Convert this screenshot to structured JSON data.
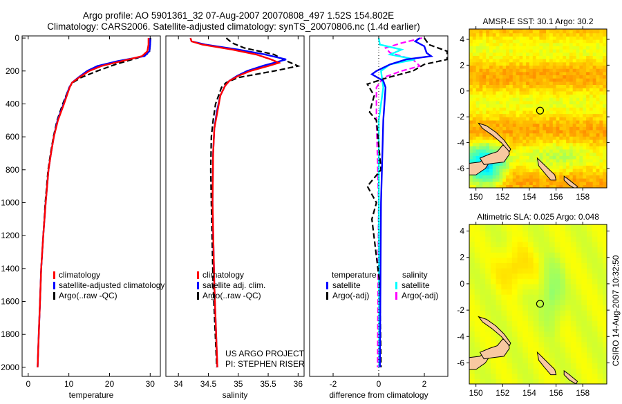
{
  "title_line1": "Argo profile: AO 5901361_32 07-Aug-2007 20070808_497 1.52S 154.802E",
  "title_line2": "Climatology: CARS2006. Satellite-adjusted climatology: synTS_20070806.nc (1.4d earlier)",
  "side_stamp": "CSIRO 14-Aug-2007 10:32:50",
  "project_line1": "US ARGO PROJECT",
  "project_line2": "PI: STEPHEN RISER",
  "colors": {
    "climatology": "#ff0000",
    "satellite": "#0000ff",
    "argo": "#000000",
    "sal_satellite": "#00ffff",
    "sal_argo": "#ff00ff",
    "land": "#f8c8a0"
  },
  "chart_data": [
    {
      "type": "line",
      "id": "temperature",
      "xlabel": "temperature",
      "ylabel": "",
      "xlim": [
        -1.5,
        32.5
      ],
      "ylim": [
        2055,
        -13
      ],
      "xticks": [
        0,
        10,
        20,
        30
      ],
      "yticks": [
        0,
        200,
        400,
        600,
        800,
        1000,
        1200,
        1400,
        1600,
        1800,
        2000
      ],
      "legend": [
        "climatology",
        "satellite-adjusted climatology",
        "Argo(..raw -QC)"
      ],
      "series": [
        {
          "name": "climatology",
          "color": "#ff0000",
          "dash": false,
          "points": [
            [
              0,
              29.6
            ],
            [
              40,
              29.6
            ],
            [
              80,
              29.3
            ],
            [
              110,
              28
            ],
            [
              140,
              23
            ],
            [
              170,
              18
            ],
            [
              200,
              15
            ],
            [
              240,
              12.5
            ],
            [
              270,
              10.8
            ],
            [
              300,
              10.2
            ],
            [
              400,
              8.8
            ],
            [
              500,
              7.3
            ],
            [
              600,
              6.3
            ],
            [
              700,
              5.6
            ],
            [
              800,
              5
            ],
            [
              1000,
              4.3
            ],
            [
              1200,
              3.7
            ],
            [
              1400,
              3.2
            ],
            [
              1600,
              2.9
            ],
            [
              1800,
              2.6
            ],
            [
              2000,
              2.3
            ]
          ]
        },
        {
          "name": "satellite-adjusted climatology",
          "color": "#0000ff",
          "dash": false,
          "points": [
            [
              0,
              30
            ],
            [
              40,
              30
            ],
            [
              80,
              29.8
            ],
            [
              110,
              28.6
            ],
            [
              140,
              22
            ],
            [
              170,
              17
            ],
            [
              200,
              14.5
            ],
            [
              240,
              12.3
            ],
            [
              270,
              10.8
            ],
            [
              300,
              10.1
            ],
            [
              400,
              8.7
            ],
            [
              500,
              7.2
            ],
            [
              600,
              6.3
            ],
            [
              700,
              5.6
            ],
            [
              800,
              5
            ],
            [
              1000,
              4.3
            ],
            [
              1200,
              3.7
            ],
            [
              1400,
              3.2
            ],
            [
              1600,
              2.9
            ],
            [
              1800,
              2.6
            ],
            [
              2000,
              2.3
            ]
          ]
        },
        {
          "name": "Argo(..raw -QC)",
          "color": "#000000",
          "dash": true,
          "points": [
            [
              0,
              30.1
            ],
            [
              40,
              30
            ],
            [
              90,
              29.8
            ],
            [
              120,
              27
            ],
            [
              160,
              21.5
            ],
            [
              200,
              17
            ],
            [
              240,
              13
            ],
            [
              270,
              11
            ],
            [
              300,
              10.1
            ],
            [
              400,
              8.5
            ],
            [
              500,
              7.1
            ],
            [
              600,
              6.2
            ],
            [
              700,
              5.5
            ],
            [
              800,
              4.9
            ],
            [
              1000,
              4.2
            ],
            [
              1200,
              3.7
            ],
            [
              1400,
              3.2
            ],
            [
              1600,
              2.9
            ],
            [
              1800,
              2.6
            ],
            [
              2000,
              2.3
            ]
          ]
        }
      ]
    },
    {
      "type": "line",
      "id": "salinity",
      "xlabel": "salinity",
      "xlim": [
        33.79,
        36.1
      ],
      "ylim": [
        2055,
        -13
      ],
      "xticks": [
        34,
        34.5,
        35,
        35.5,
        36
      ],
      "yticks": [],
      "legend": [
        "climatology",
        "satellite adj. clim.",
        "Argo(..raw -QC)"
      ],
      "series": [
        {
          "name": "climatology",
          "color": "#ff0000",
          "dash": false,
          "points": [
            [
              0,
              34.2
            ],
            [
              20,
              34.22
            ],
            [
              40,
              34.4
            ],
            [
              70,
              34.9
            ],
            [
              100,
              35.3
            ],
            [
              130,
              35.55
            ],
            [
              150,
              35.68
            ],
            [
              170,
              35.5
            ],
            [
              200,
              35.2
            ],
            [
              230,
              35.0
            ],
            [
              260,
              34.85
            ],
            [
              290,
              34.78
            ],
            [
              350,
              34.7
            ],
            [
              450,
              34.65
            ],
            [
              550,
              34.6
            ],
            [
              700,
              34.58
            ],
            [
              1000,
              34.57
            ],
            [
              1500,
              34.6
            ],
            [
              2000,
              34.65
            ]
          ]
        },
        {
          "name": "satellite adj. clim.",
          "color": "#0000ff",
          "dash": false,
          "points": [
            [
              0,
              34.2
            ],
            [
              20,
              34.22
            ],
            [
              40,
              34.45
            ],
            [
              70,
              35.0
            ],
            [
              100,
              35.45
            ],
            [
              130,
              35.8
            ],
            [
              150,
              35.6
            ],
            [
              170,
              35.4
            ],
            [
              200,
              35.15
            ],
            [
              230,
              34.98
            ],
            [
              260,
              34.85
            ],
            [
              290,
              34.78
            ],
            [
              350,
              34.7
            ],
            [
              450,
              34.64
            ],
            [
              550,
              34.6
            ],
            [
              700,
              34.58
            ],
            [
              1000,
              34.57
            ],
            [
              1500,
              34.6
            ],
            [
              2000,
              34.65
            ]
          ]
        },
        {
          "name": "Argo(..raw -QC)",
          "color": "#000000",
          "dash": true,
          "points": [
            [
              0,
              34.8
            ],
            [
              30,
              34.9
            ],
            [
              60,
              35.1
            ],
            [
              100,
              35.6
            ],
            [
              130,
              35.75
            ],
            [
              170,
              36.0
            ],
            [
              200,
              35.6
            ],
            [
              240,
              35.0
            ],
            [
              270,
              34.8
            ],
            [
              300,
              34.72
            ],
            [
              400,
              34.62
            ],
            [
              500,
              34.58
            ],
            [
              600,
              34.55
            ],
            [
              800,
              34.54
            ],
            [
              1000,
              34.55
            ],
            [
              1500,
              34.58
            ],
            [
              2000,
              34.64
            ]
          ]
        }
      ]
    },
    {
      "type": "line",
      "id": "difference",
      "xlabel": "difference from climatology",
      "xlim": [
        -3.03,
        3.03
      ],
      "ylim": [
        2055,
        -13
      ],
      "xticks": [
        -2,
        0,
        2
      ],
      "yticks": [],
      "legend_left_title": "temperature",
      "legend_right_title": "salinity",
      "legend_left": [
        "satellite",
        "Argo(-adj)"
      ],
      "legend_right": [
        "satellite",
        "Argo(-adj)"
      ],
      "series": [
        {
          "name": "temperature satellite",
          "color": "#0000ff",
          "dash": false,
          "points": [
            [
              0,
              1.8
            ],
            [
              20,
              1.6
            ],
            [
              50,
              2.0
            ],
            [
              90,
              2.1
            ],
            [
              110,
              2.3
            ],
            [
              130,
              1.2
            ],
            [
              160,
              0.5
            ],
            [
              200,
              -0.1
            ],
            [
              220,
              -0.3
            ],
            [
              260,
              0.2
            ],
            [
              300,
              0.3
            ],
            [
              500,
              0.2
            ],
            [
              1000,
              0.1
            ],
            [
              2000,
              0.05
            ]
          ]
        },
        {
          "name": "temperature Argo(-adj)",
          "color": "#000000",
          "dash": true,
          "points": [
            [
              0,
              2.0
            ],
            [
              40,
              2.2
            ],
            [
              80,
              3.0
            ],
            [
              130,
              3.0
            ],
            [
              160,
              2.0
            ],
            [
              200,
              1.5
            ],
            [
              240,
              0.4
            ],
            [
              280,
              -0.5
            ],
            [
              350,
              -0.2
            ],
            [
              450,
              -0.4
            ],
            [
              500,
              -0.1
            ],
            [
              800,
              0.1
            ],
            [
              900,
              -0.5
            ],
            [
              1000,
              -0.1
            ],
            [
              1100,
              -0.3
            ],
            [
              1500,
              0.05
            ],
            [
              2000,
              0.1
            ]
          ]
        },
        {
          "name": "salinity satellite",
          "color": "#00ffff",
          "dash": false,
          "points": [
            [
              0,
              0
            ],
            [
              40,
              0.05
            ],
            [
              70,
              1.0
            ],
            [
              100,
              0.5
            ],
            [
              130,
              1.6
            ],
            [
              160,
              0.5
            ],
            [
              200,
              0.1
            ],
            [
              300,
              0.2
            ],
            [
              500,
              0
            ],
            [
              2000,
              0.02
            ]
          ]
        },
        {
          "name": "salinity Argo(-adj)",
          "color": "#ff00ff",
          "dash": true,
          "points": [
            [
              0,
              1.9
            ],
            [
              30,
              1.0
            ],
            [
              60,
              0.3
            ],
            [
              90,
              0.5
            ],
            [
              130,
              1.5
            ],
            [
              170,
              1.8
            ],
            [
              200,
              1.0
            ],
            [
              240,
              0.2
            ],
            [
              300,
              -0.1
            ],
            [
              500,
              -0.1
            ],
            [
              1000,
              0
            ],
            [
              2000,
              -0.05
            ]
          ]
        }
      ]
    },
    {
      "type": "heatmap",
      "id": "sst_map",
      "title": "AMSR-E SST: 30.1 Argo: 30.2",
      "xlim": [
        149.5,
        159.8
      ],
      "ylim": [
        -7.5,
        4.8
      ],
      "xticks": [
        150,
        152,
        154,
        156,
        158
      ],
      "yticks": [
        4,
        2,
        0,
        -2,
        -4,
        -6
      ],
      "field": "sst",
      "marker": [
        154.802,
        -1.52
      ]
    },
    {
      "type": "heatmap",
      "id": "sla_map",
      "title": "Altimetric SLA: 0.025 Argo: 0.048",
      "xlim": [
        149.5,
        159.8
      ],
      "ylim": [
        -7.6,
        4.5
      ],
      "xticks": [
        150,
        152,
        154,
        156,
        158
      ],
      "yticks": [
        4,
        2,
        0,
        -2,
        -4,
        -6
      ],
      "field": "sla",
      "marker": [
        154.802,
        -1.52
      ]
    }
  ],
  "land": [
    [
      [
        149.5,
        -5.6
      ],
      [
        150.3,
        -5.5
      ],
      [
        150.8,
        -5.1
      ],
      [
        151.1,
        -5.4
      ],
      [
        150.7,
        -6.0
      ],
      [
        150.0,
        -6.5
      ],
      [
        149.5,
        -6.5
      ]
    ],
    [
      [
        150.3,
        -5.2
      ],
      [
        151.0,
        -4.9
      ],
      [
        151.6,
        -4.7
      ],
      [
        152.0,
        -4.2
      ],
      [
        152.4,
        -4.3
      ],
      [
        152.5,
        -4.9
      ],
      [
        152.1,
        -5.5
      ],
      [
        151.3,
        -5.6
      ],
      [
        150.6,
        -5.7
      ]
    ],
    [
      [
        150.2,
        -2.5
      ],
      [
        150.8,
        -2.7
      ],
      [
        151.5,
        -3.2
      ],
      [
        152.1,
        -3.8
      ],
      [
        152.6,
        -4.5
      ],
      [
        152.5,
        -4.7
      ],
      [
        151.9,
        -4.0
      ],
      [
        151.2,
        -3.4
      ],
      [
        150.5,
        -2.9
      ]
    ],
    [
      [
        154.6,
        -5.2
      ],
      [
        154.9,
        -5.5
      ],
      [
        155.4,
        -6.0
      ],
      [
        155.9,
        -6.5
      ],
      [
        156.0,
        -6.9
      ],
      [
        155.6,
        -6.9
      ],
      [
        155.1,
        -6.3
      ],
      [
        154.7,
        -5.8
      ]
    ],
    [
      [
        156.6,
        -6.6
      ],
      [
        157.0,
        -6.9
      ],
      [
        157.6,
        -7.4
      ],
      [
        157.5,
        -7.6
      ],
      [
        157.0,
        -7.3
      ],
      [
        156.6,
        -6.9
      ]
    ]
  ]
}
